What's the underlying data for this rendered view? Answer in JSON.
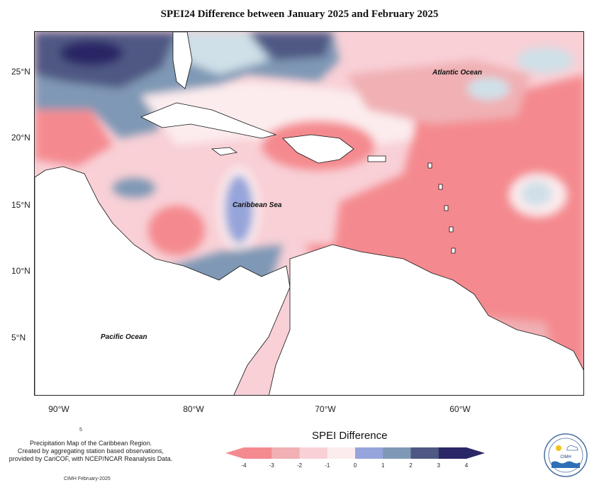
{
  "title": "SPEI24 Difference between January 2025 and February 2025",
  "map_labels": {
    "atlantic": "Atlantic Ocean",
    "caribbean": "Caribbean Sea",
    "pacific": "Pacific Ocean"
  },
  "lat_labels": [
    "25°N",
    "20°N",
    "15°N",
    "10°N",
    "5°N"
  ],
  "lon_labels": [
    "90°W",
    "80°W",
    "70°W",
    "60°W"
  ],
  "legend": {
    "title": "SPEI Difference",
    "ticks": [
      "-4",
      "-3",
      "-2",
      "-1",
      "0",
      "1",
      "2",
      "3",
      "4"
    ],
    "colors": [
      "#f48a8f",
      "#f0b0b4",
      "#f8d0d6",
      "#fcecee",
      "#cfe0e8",
      "#95a4da",
      "#7f98b5",
      "#4f5883",
      "#2a2766"
    ]
  },
  "credit": {
    "line1": "Precipitation Map of the Caribbean Region.",
    "line2": "Created by aggregating station based observations,",
    "line3": "provided by CariCOF, with NCEP/NCAR Reanalysis Data.",
    "footer": "CIMH February-2025",
    "mark": "5"
  },
  "logo": {
    "text": "CIMH"
  }
}
